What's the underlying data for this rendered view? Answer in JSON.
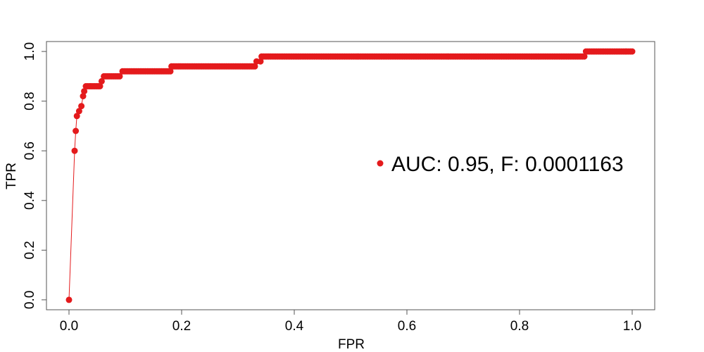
{
  "chart_data": {
    "type": "line",
    "xlabel": "FPR",
    "ylabel": "TPR",
    "xlim": [
      -0.04,
      1.04
    ],
    "ylim": [
      -0.04,
      1.04
    ],
    "x_ticks": [
      0.0,
      0.2,
      0.4,
      0.6,
      0.8,
      1.0
    ],
    "x_tick_labels": [
      "0.0",
      "0.2",
      "0.4",
      "0.6",
      "0.8",
      "1.0"
    ],
    "y_ticks": [
      0.0,
      0.2,
      0.4,
      0.6,
      0.8,
      1.0
    ],
    "y_tick_labels": [
      "0.0",
      "0.2",
      "0.4",
      "0.6",
      "0.8",
      "1.0"
    ],
    "grid": false,
    "legend": {
      "position": "right-center",
      "entries": [
        "AUC: 0.95, F: 0.0001163"
      ]
    },
    "series_color": "#e41a1c",
    "series": [
      {
        "points": [
          [
            0.0,
            0.0
          ],
          [
            0.01,
            0.6
          ],
          [
            0.012,
            0.68
          ],
          [
            0.014,
            0.74
          ],
          [
            0.018,
            0.76
          ],
          [
            0.022,
            0.78
          ],
          [
            0.025,
            0.82
          ],
          [
            0.027,
            0.84
          ],
          [
            0.03,
            0.86
          ],
          [
            0.055,
            0.86
          ],
          [
            0.058,
            0.88
          ],
          [
            0.062,
            0.9
          ],
          [
            0.09,
            0.9
          ],
          [
            0.095,
            0.92
          ],
          [
            0.18,
            0.92
          ],
          [
            0.182,
            0.94
          ],
          [
            0.33,
            0.94
          ],
          [
            0.333,
            0.96
          ],
          [
            0.34,
            0.96
          ],
          [
            0.342,
            0.98
          ],
          [
            0.915,
            0.98
          ],
          [
            0.918,
            1.0
          ],
          [
            1.0,
            1.0
          ]
        ]
      }
    ]
  }
}
